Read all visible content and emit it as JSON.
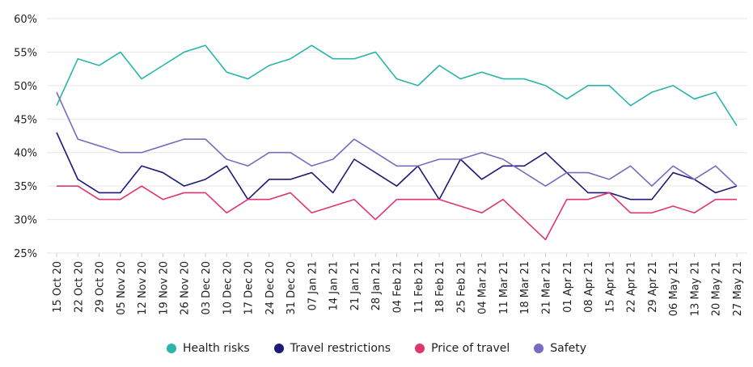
{
  "chart_data": {
    "type": "line",
    "title": "",
    "xlabel": "",
    "ylabel": "",
    "ylim": [
      25,
      60
    ],
    "yticks": [
      25,
      30,
      35,
      40,
      45,
      50,
      55,
      60
    ],
    "ytick_labels": [
      "25%",
      "30%",
      "35%",
      "40%",
      "45%",
      "50%",
      "55%",
      "60%"
    ],
    "grid": "horizontal",
    "legend_position": "bottom",
    "categories": [
      "15 Oct 20",
      "22 Oct 20",
      "29 Oct 20",
      "05 Nov 20",
      "12 Nov 20",
      "19 Nov 20",
      "26 Nov 20",
      "03 Dec 20",
      "10 Dec 20",
      "17 Dec 20",
      "24 Dec 20",
      "31 Dec 20",
      "07 Jan 21",
      "14 Jan 21",
      "21 Jan 21",
      "28 Jan 21",
      "04 Feb 21",
      "11 Feb 21",
      "18 Feb 21",
      "25 Feb 21",
      "04 Mar 21",
      "11 Mar 21",
      "18 Mar 21",
      "21 Mar 21",
      "01 Apr 21",
      "08 Apr 21",
      "15 Apr 21",
      "22 Apr 21",
      "29 Apr 21",
      "06 May 21",
      "13 May 21",
      "20 May 21",
      "27 May 21"
    ],
    "series": [
      {
        "name": "Health risks",
        "color": "#2ab5aa",
        "values": [
          47,
          54,
          53,
          55,
          51,
          53,
          55,
          56,
          52,
          51,
          53,
          54,
          56,
          54,
          54,
          55,
          51,
          50,
          53,
          51,
          52,
          51,
          51,
          50,
          48,
          50,
          50,
          47,
          49,
          50,
          48,
          49,
          44
        ]
      },
      {
        "name": "Travel restrictions",
        "color": "#1e1a78",
        "values": [
          43,
          36,
          34,
          34,
          38,
          37,
          35,
          36,
          38,
          33,
          36,
          36,
          37,
          34,
          39,
          37,
          35,
          38,
          33,
          39,
          36,
          38,
          38,
          40,
          37,
          34,
          34,
          33,
          33,
          37,
          36,
          34,
          35
        ]
      },
      {
        "name": "Price of travel",
        "color": "#e0356f",
        "values": [
          35,
          35,
          33,
          33,
          35,
          33,
          34,
          34,
          31,
          33,
          33,
          34,
          31,
          32,
          33,
          30,
          33,
          33,
          33,
          32,
          31,
          33,
          30,
          27,
          33,
          33,
          34,
          31,
          31,
          32,
          31,
          33,
          33
        ]
      },
      {
        "name": "Safety",
        "color": "#7b6bbf",
        "values": [
          49,
          42,
          41,
          40,
          40,
          41,
          42,
          42,
          39,
          38,
          40,
          40,
          38,
          39,
          42,
          40,
          38,
          38,
          39,
          39,
          40,
          39,
          37,
          35,
          37,
          37,
          36,
          38,
          35,
          38,
          36,
          38,
          35
        ]
      }
    ]
  }
}
